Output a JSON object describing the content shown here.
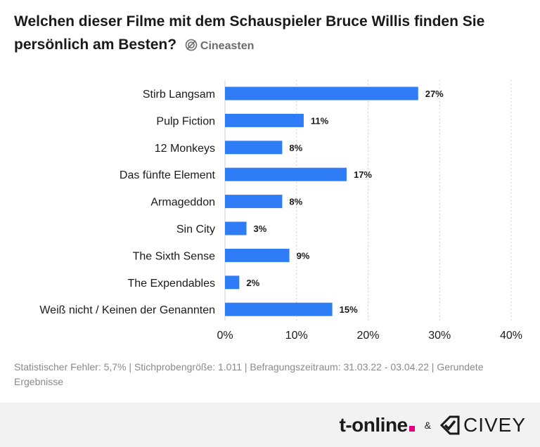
{
  "header": {
    "title": "Welchen dieser Filme mit dem Schauspieler Bruce Willis finden Sie persönlich am Besten?",
    "panel_icon": "target-icon",
    "panel_label": "Cineasten"
  },
  "chart_data": {
    "type": "bar",
    "orientation": "horizontal",
    "categories": [
      "Stirb Langsam",
      "Pulp Fiction",
      "12 Monkeys",
      "Das fünfte Element",
      "Armageddon",
      "Sin City",
      "The Sixth Sense",
      "The Expendables",
      "Weiß nicht / Keinen der Genannten"
    ],
    "values": [
      27,
      11,
      8,
      17,
      8,
      3,
      9,
      2,
      15
    ],
    "value_labels": [
      "27%",
      "11%",
      "8%",
      "17%",
      "8%",
      "3%",
      "9%",
      "2%",
      "15%"
    ],
    "xlim": [
      0,
      40
    ],
    "x_ticks": [
      0,
      10,
      20,
      30,
      40
    ],
    "x_tick_labels": [
      "0%",
      "10%",
      "20%",
      "30%",
      "40%"
    ],
    "grid": true,
    "bar_color": "#2f7df6"
  },
  "footnote": "Statistischer Fehler: 5,7% | Stichprobengröße: 1.011 | Befragungszeitraum: 31.03.22 - 03.04.22 | Gerundete Ergebnisse",
  "footer": {
    "brand_primary": "t-online",
    "brand_primary_accent": "#e2007a",
    "separator": "&",
    "brand_secondary": "CIVEY"
  }
}
